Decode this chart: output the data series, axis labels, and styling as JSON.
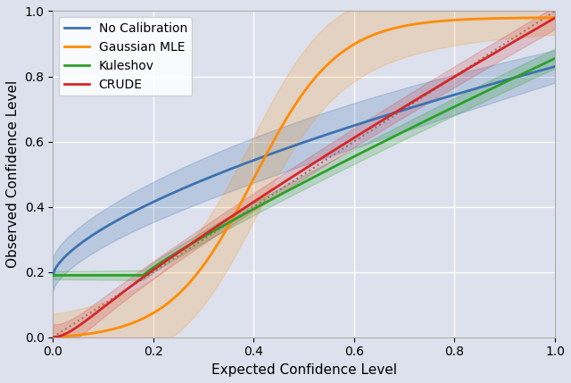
{
  "xlabel": "Expected Confidence Level",
  "ylabel": "Observed Confidence Level",
  "xlim": [
    0.0,
    1.0
  ],
  "ylim": [
    0.0,
    1.0
  ],
  "background_color": "#dde1ed",
  "grid_color": "#ffffff",
  "legend_entries": [
    "No Calibration",
    "Gaussian MLE",
    "Kuleshov",
    "CRUDE"
  ],
  "line_colors": [
    "#3c72b0",
    "#ff8c00",
    "#2ca02c",
    "#d62728"
  ],
  "fill_alphas": [
    0.22,
    0.18,
    0.22,
    0.18
  ],
  "diagonal_color": "#888888"
}
